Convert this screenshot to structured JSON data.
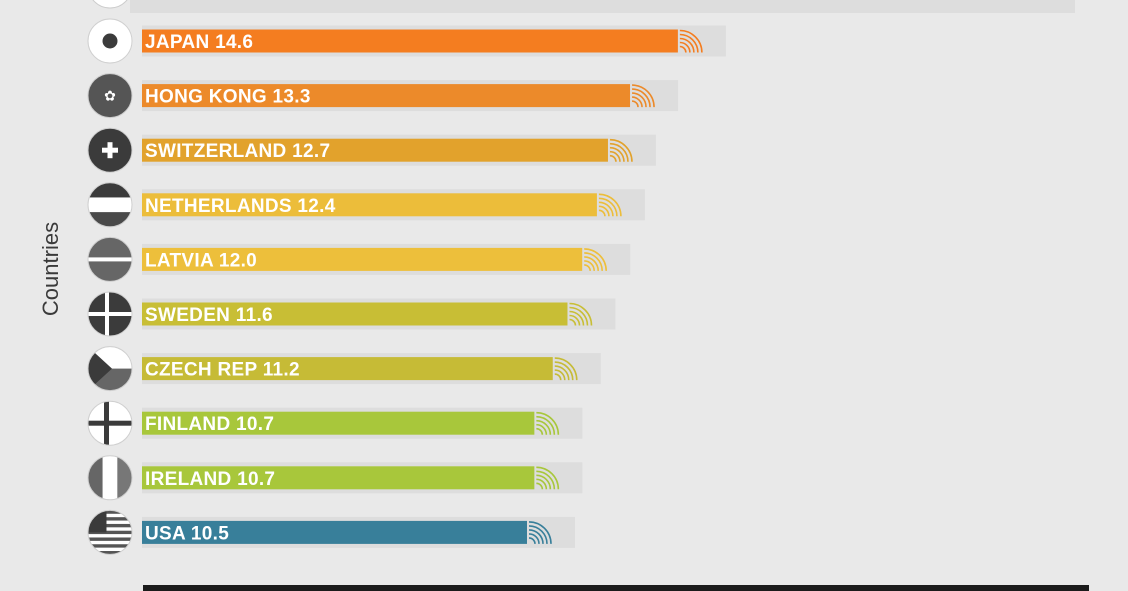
{
  "chart_data": {
    "type": "bar",
    "orientation": "horizontal",
    "ylabel": "Countries",
    "categories": [
      "JAPAN",
      "HONG KONG",
      "SWITZERLAND",
      "NETHERLANDS",
      "LATVIA",
      "SWEDEN",
      "CZECH REP",
      "FINLAND",
      "IRELAND",
      "USA"
    ],
    "values": [
      14.6,
      13.3,
      12.7,
      12.4,
      12.0,
      11.6,
      11.2,
      10.7,
      10.7,
      10.5
    ],
    "value_labels": [
      "14.6",
      "13.3",
      "12.7",
      "12.4",
      "12.0",
      "11.6",
      "11.2",
      "10.7",
      "10.7",
      "10.5"
    ],
    "flag_icons": [
      "japan-flag-icon",
      "hong-kong-flag-icon",
      "switzerland-flag-icon",
      "netherlands-flag-icon",
      "latvia-flag-icon",
      "sweden-flag-icon",
      "czech-flag-icon",
      "finland-flag-icon",
      "ireland-flag-icon",
      "usa-flag-icon"
    ],
    "colors": [
      "#f47d20",
      "#ec8a2a",
      "#e2a22c",
      "#ecbd3a",
      "#edbf3b",
      "#c8be35",
      "#c6bb36",
      "#a8c73b",
      "#a8c73b",
      "#387f9a"
    ],
    "grid": false
  },
  "colors": {
    "background": "#e9e9e9",
    "stripe": "#dddddd",
    "flag_dark": "#3b3b3b",
    "flag_light": "#ffffff",
    "bottom_bar": "#1b1b1b"
  }
}
